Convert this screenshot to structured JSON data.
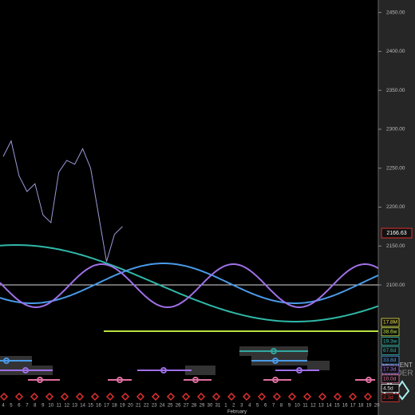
{
  "chart_data": {
    "type": "line",
    "categories": [
      "4",
      "5",
      "6",
      "7",
      "8",
      "9",
      "10",
      "11",
      "12",
      "13",
      "14",
      "15",
      "16",
      "17",
      "18",
      "19",
      "20",
      "21",
      "22",
      "23",
      "24",
      "25",
      "26",
      "27",
      "28",
      "29",
      "30",
      "31",
      "1",
      "2",
      "3",
      "4",
      "5",
      "6",
      "7",
      "8",
      "9",
      "10",
      "11",
      "12",
      "13",
      "14",
      "15",
      "16",
      "17",
      "18",
      "19",
      "20"
    ],
    "annotations": [
      "February"
    ],
    "series": [
      {
        "color": "#9a9ad8",
        "values": [
          2265,
          2285,
          2240,
          2220,
          2230,
          2190,
          2180,
          2245,
          2260,
          2255,
          2275,
          2250,
          2190,
          2130,
          2165,
          2175,
          null,
          null,
          null,
          null,
          null,
          null,
          null,
          null,
          null,
          null,
          null,
          null,
          null,
          null,
          null,
          null,
          null,
          null,
          null,
          null,
          null,
          null,
          null,
          null,
          null,
          null,
          null,
          null,
          null,
          null,
          null,
          null
        ]
      }
    ],
    "ylim": [
      1974,
      2466
    ],
    "yticks": [
      {
        "value": 2100,
        "label": "2100.00"
      },
      {
        "value": 2150,
        "label": "2150.00"
      },
      {
        "value": 2200,
        "label": "2200.00"
      },
      {
        "value": 2250,
        "label": "2250.00"
      },
      {
        "value": 2300,
        "label": "2300.00"
      },
      {
        "value": 2350,
        "label": "2350.00"
      },
      {
        "value": 2400,
        "label": "2400.00"
      },
      {
        "value": 2450,
        "label": "2450.00"
      }
    ],
    "last_price": {
      "value": 2166.63,
      "label": "2166.63"
    },
    "cycles": [
      {
        "label": "17.8M",
        "color": "#e8e040"
      },
      {
        "label": "38.6w",
        "color": "#b8e040"
      },
      {
        "label": "19.3w",
        "color": "#30b8a8"
      },
      {
        "label": "67.6d",
        "color": "#30a8a0"
      },
      {
        "label": "33.8d",
        "color": "#4a9ae8"
      },
      {
        "label": "17.3d",
        "color": "#a070e8"
      },
      {
        "label": "10.0d",
        "color": "#e070a0"
      },
      {
        "label": "4.5d",
        "color": "#e0e0e0"
      },
      {
        "label": "2.3d",
        "color": "#e03030"
      }
    ],
    "logo": [
      "SENTIENT",
      "TRADER"
    ]
  }
}
